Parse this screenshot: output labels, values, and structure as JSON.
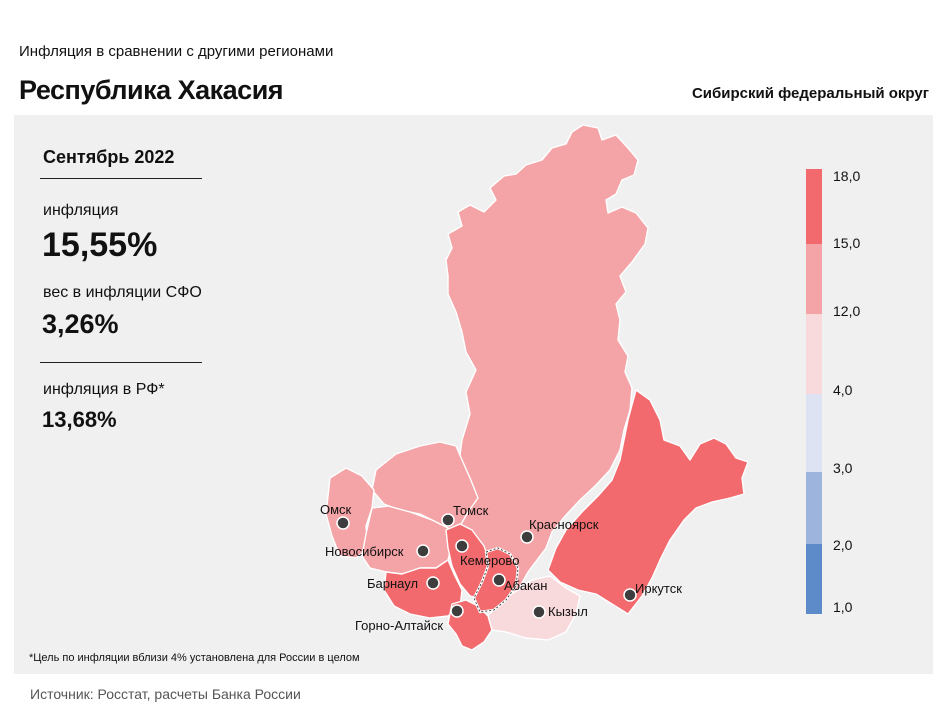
{
  "header": {
    "subtitle": "Инфляция  в сравнении  с другими  регионами",
    "region": "Республика Хакасия",
    "district": "Сибирский федеральный округ"
  },
  "stats": {
    "period": "Сентябрь 2022",
    "inflation_label": "инфляция",
    "inflation_value": "15,55%",
    "weight_label": "вес в инфляции  СФО",
    "weight_value": "3,26%",
    "rf_label": "инфляция  в РФ*",
    "rf_value": "13,68%"
  },
  "footnote": "*Цель по инфляции вблизи 4% установлена для России в целом",
  "source": "Источник: Росстат, расчеты Банка России",
  "legend": {
    "ticks": [
      "18,0",
      "15,0",
      "12,0",
      "4,0",
      "3,0",
      "2,0",
      "1,0"
    ],
    "colors": [
      "#f26a6d",
      "#f4a3a6",
      "#f8d9dc",
      "#dde3f2",
      "#9db5dd",
      "#5d8ac8"
    ]
  },
  "cities": {
    "omsk": "Омск",
    "tomsk": "Томск",
    "novosibirsk": "Новосибирск",
    "kemerovo": "Кемерово",
    "krasnoyarsk": "Красноярск",
    "barnaul": "Барнаул",
    "abakan": "Абакан",
    "irkutsk": "Иркутск",
    "kyzyl": "Кызыл",
    "gorno_altaysk": "Горно-Алтайск"
  },
  "map_colors": {
    "high": "#f26a6d",
    "mid": "#f4a3a6",
    "low": "#f8d9dc"
  }
}
